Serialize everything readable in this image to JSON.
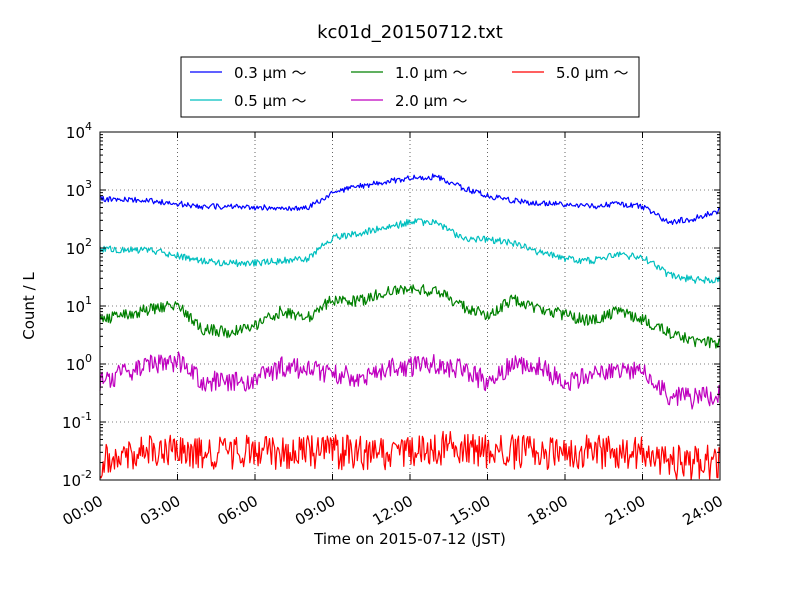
{
  "chart_data": {
    "type": "line",
    "title": "kc01d_20150712.txt",
    "xlabel": "Time on 2015-07-12 (JST)",
    "ylabel": "Count / L",
    "y_scale": "log",
    "ylim": [
      0.01,
      10000
    ],
    "xlim": [
      "00:00",
      "24:00"
    ],
    "grid": true,
    "legend_position": "top",
    "x_ticks": [
      "00:00",
      "03:00",
      "06:00",
      "09:00",
      "12:00",
      "15:00",
      "18:00",
      "21:00",
      "24:00"
    ],
    "y_ticks": [
      {
        "base": "10",
        "exp": "-2",
        "value": 0.01
      },
      {
        "base": "10",
        "exp": "-1",
        "value": 0.1
      },
      {
        "base": "10",
        "exp": "0",
        "value": 1
      },
      {
        "base": "10",
        "exp": "1",
        "value": 10
      },
      {
        "base": "10",
        "exp": "2",
        "value": 100
      },
      {
        "base": "10",
        "exp": "3",
        "value": 1000
      },
      {
        "base": "10",
        "exp": "4",
        "value": 10000
      }
    ],
    "x": [
      "00:00",
      "01:00",
      "02:00",
      "03:00",
      "04:00",
      "05:00",
      "06:00",
      "07:00",
      "08:00",
      "09:00",
      "10:00",
      "11:00",
      "12:00",
      "13:00",
      "14:00",
      "15:00",
      "16:00",
      "17:00",
      "18:00",
      "19:00",
      "20:00",
      "21:00",
      "22:00",
      "23:00",
      "24:00"
    ],
    "series": [
      {
        "name": "0.3 μm ～",
        "color": "#0000ff",
        "noise": 0.05,
        "values": [
          700,
          680,
          650,
          580,
          520,
          510,
          500,
          490,
          480,
          900,
          1150,
          1350,
          1600,
          1700,
          1100,
          800,
          650,
          600,
          560,
          520,
          580,
          520,
          280,
          320,
          450
        ]
      },
      {
        "name": "0.5 μm ～",
        "color": "#00bfbf",
        "noise": 0.06,
        "values": [
          95,
          95,
          90,
          75,
          60,
          55,
          55,
          60,
          65,
          150,
          180,
          220,
          280,
          280,
          150,
          140,
          120,
          85,
          65,
          60,
          75,
          70,
          35,
          28,
          28
        ]
      },
      {
        "name": "1.0 μm ～",
        "color": "#008000",
        "noise": 0.1,
        "values": [
          6,
          7,
          9,
          10,
          4,
          3.5,
          4.5,
          8,
          6,
          13,
          12,
          17,
          20,
          18,
          10,
          7,
          13,
          9,
          7,
          5.5,
          8,
          6,
          3.5,
          2.5,
          2.2
        ]
      },
      {
        "name": "2.0 μm ～",
        "color": "#bf00bf",
        "noise": 0.18,
        "values": [
          0.5,
          0.7,
          1.0,
          1.1,
          0.5,
          0.5,
          0.5,
          0.9,
          0.8,
          0.7,
          0.6,
          0.8,
          0.9,
          1.0,
          0.8,
          0.5,
          1.0,
          0.9,
          0.5,
          0.6,
          0.8,
          0.7,
          0.3,
          0.25,
          0.3
        ]
      },
      {
        "name": "5.0 μm ～",
        "color": "#ff0000",
        "noise": 0.3,
        "values": [
          0.02,
          0.03,
          0.03,
          0.03,
          0.03,
          0.03,
          0.03,
          0.03,
          0.03,
          0.03,
          0.03,
          0.03,
          0.03,
          0.035,
          0.035,
          0.03,
          0.03,
          0.03,
          0.03,
          0.03,
          0.03,
          0.03,
          0.02,
          0.02,
          0.02
        ]
      }
    ]
  }
}
